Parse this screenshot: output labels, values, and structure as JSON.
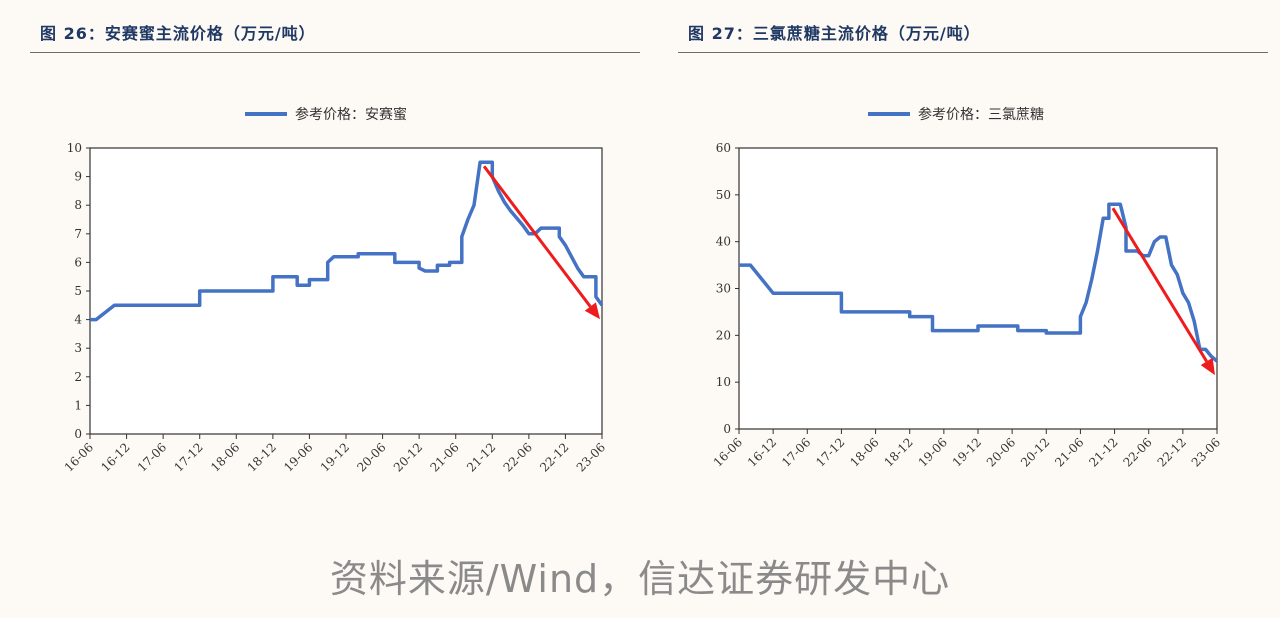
{
  "figures": [
    {
      "title": "图 26：安赛蜜主流价格（万元/吨）"
    },
    {
      "title": "图 27：三氯蔗糖主流价格（万元/吨）"
    }
  ],
  "source_note": "资料来源/Wind，信达证券研发中心",
  "chart_data": [
    {
      "type": "line",
      "title": "图 26：安赛蜜主流价格（万元/吨）",
      "legend_position": "top-center",
      "grid": false,
      "x_tick_labels": [
        "16-06",
        "16-12",
        "17-06",
        "17-12",
        "18-06",
        "18-12",
        "19-06",
        "19-12",
        "20-06",
        "20-12",
        "21-06",
        "21-12",
        "22-06",
        "22-12",
        "23-06"
      ],
      "xlim": [
        "2016-06",
        "2023-06"
      ],
      "ylim": [
        0,
        10
      ],
      "y_ticks": [
        0,
        1,
        2,
        3,
        4,
        5,
        6,
        7,
        8,
        9,
        10
      ],
      "series": [
        {
          "name": "参考价格：安赛蜜",
          "color": "#4472c4",
          "points": [
            [
              "2016-06",
              4.0
            ],
            [
              "2016-07",
              4.0
            ],
            [
              "2016-10",
              4.5
            ],
            [
              "2017-12",
              4.5
            ],
            [
              "2017-12",
              5.0
            ],
            [
              "2018-12",
              5.0
            ],
            [
              "2018-12",
              5.5
            ],
            [
              "2019-04",
              5.5
            ],
            [
              "2019-04",
              5.2
            ],
            [
              "2019-06",
              5.2
            ],
            [
              "2019-06",
              5.4
            ],
            [
              "2019-09",
              5.4
            ],
            [
              "2019-09",
              6.0
            ],
            [
              "2019-10",
              6.2
            ],
            [
              "2020-02",
              6.2
            ],
            [
              "2020-02",
              6.3
            ],
            [
              "2020-08",
              6.3
            ],
            [
              "2020-08",
              6.0
            ],
            [
              "2020-12",
              6.0
            ],
            [
              "2020-12",
              5.8
            ],
            [
              "2021-01",
              5.7
            ],
            [
              "2021-03",
              5.7
            ],
            [
              "2021-03",
              5.9
            ],
            [
              "2021-05",
              5.9
            ],
            [
              "2021-05",
              6.0
            ],
            [
              "2021-07",
              6.0
            ],
            [
              "2021-07",
              6.9
            ],
            [
              "2021-08",
              7.5
            ],
            [
              "2021-09",
              8.0
            ],
            [
              "2021-10",
              9.5
            ],
            [
              "2021-12",
              9.5
            ],
            [
              "2021-12",
              9.0
            ],
            [
              "2022-01",
              8.5
            ],
            [
              "2022-02",
              8.1
            ],
            [
              "2022-03",
              7.8
            ],
            [
              "2022-05",
              7.3
            ],
            [
              "2022-06",
              7.0
            ],
            [
              "2022-07",
              7.0
            ],
            [
              "2022-08",
              7.2
            ],
            [
              "2022-11",
              7.2
            ],
            [
              "2022-11",
              6.9
            ],
            [
              "2022-12",
              6.6
            ],
            [
              "2023-01",
              6.2
            ],
            [
              "2023-02",
              5.8
            ],
            [
              "2023-03",
              5.5
            ],
            [
              "2023-05",
              5.5
            ],
            [
              "2023-05",
              4.8
            ],
            [
              "2023-06",
              4.5
            ]
          ]
        }
      ]
    },
    {
      "type": "line",
      "title": "图 27：三氯蔗糖主流价格（万元/吨）",
      "legend_position": "top-center",
      "grid": false,
      "x_tick_labels": [
        "16-06",
        "16-12",
        "17-06",
        "17-12",
        "18-06",
        "18-12",
        "19-06",
        "19-12",
        "20-06",
        "20-12",
        "21-06",
        "21-12",
        "22-06",
        "22-12",
        "23-06"
      ],
      "xlim": [
        "2016-06",
        "2023-06"
      ],
      "ylim": [
        0,
        60
      ],
      "y_ticks": [
        0,
        10,
        20,
        30,
        40,
        50,
        60
      ],
      "series": [
        {
          "name": "参考价格：三氯蔗糖",
          "color": "#4472c4",
          "points": [
            [
              "2016-06",
              35
            ],
            [
              "2016-08",
              35
            ],
            [
              "2016-12",
              29
            ],
            [
              "2017-12",
              29
            ],
            [
              "2017-12",
              25
            ],
            [
              "2018-12",
              25
            ],
            [
              "2018-12",
              24
            ],
            [
              "2019-04",
              24
            ],
            [
              "2019-04",
              21
            ],
            [
              "2019-12",
              21
            ],
            [
              "2019-12",
              22
            ],
            [
              "2020-07",
              22
            ],
            [
              "2020-07",
              21
            ],
            [
              "2020-12",
              21
            ],
            [
              "2020-12",
              20.5
            ],
            [
              "2021-06",
              20.5
            ],
            [
              "2021-06",
              24
            ],
            [
              "2021-07",
              27
            ],
            [
              "2021-08",
              32
            ],
            [
              "2021-09",
              38
            ],
            [
              "2021-10",
              45
            ],
            [
              "2021-11",
              45
            ],
            [
              "2021-11",
              48
            ],
            [
              "2022-01",
              48
            ],
            [
              "2022-02",
              43
            ],
            [
              "2022-02",
              38
            ],
            [
              "2022-04",
              38
            ],
            [
              "2022-05",
              37
            ],
            [
              "2022-06",
              37
            ],
            [
              "2022-07",
              40
            ],
            [
              "2022-08",
              41
            ],
            [
              "2022-09",
              41
            ],
            [
              "2022-10",
              35
            ],
            [
              "2022-11",
              33
            ],
            [
              "2022-12",
              29
            ],
            [
              "2023-01",
              27
            ],
            [
              "2023-02",
              23
            ],
            [
              "2023-03",
              17
            ],
            [
              "2023-04",
              17
            ],
            [
              "2023-05",
              15.5
            ],
            [
              "2023-06",
              14.5
            ]
          ]
        }
      ]
    }
  ]
}
